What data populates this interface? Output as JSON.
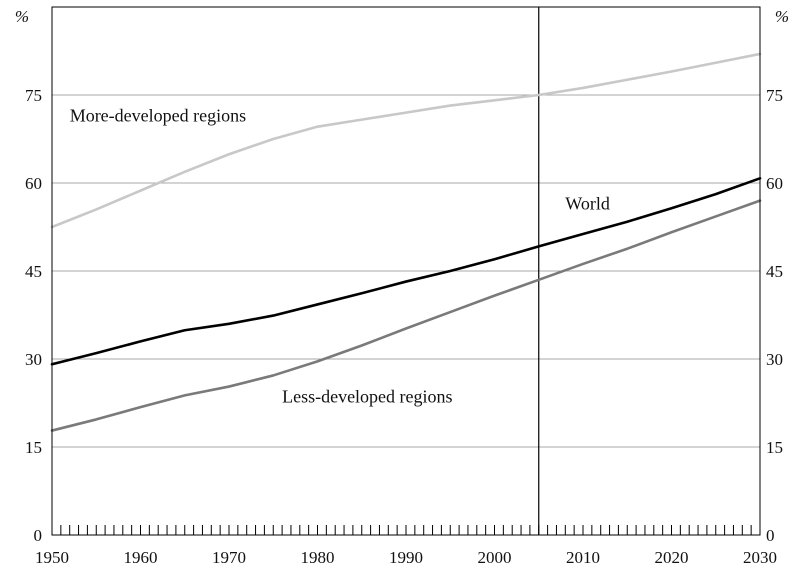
{
  "chart_data": {
    "type": "line",
    "title": "",
    "xlabel": "",
    "ylabel": "",
    "y_unit_left": "%",
    "y_unit_right": "%",
    "xlim": [
      1950,
      2030
    ],
    "ylim": [
      0,
      90
    ],
    "x_ticks": [
      1950,
      1960,
      1970,
      1980,
      1990,
      2000,
      2010,
      2020,
      2030
    ],
    "x_tick_labels": [
      "1950",
      "1960",
      "1970",
      "1980",
      "1990",
      "2000",
      "2010",
      "2020",
      "2030"
    ],
    "y_ticks": [
      0,
      15,
      30,
      45,
      60,
      75
    ],
    "y_tick_labels": [
      "0",
      "15",
      "30",
      "45",
      "60",
      "75"
    ],
    "grid": "horizontal",
    "minor_x_ticks_every": 1,
    "reference_line_x": 2005,
    "series": [
      {
        "name": "More-developed regions",
        "color": "#c8c8c8",
        "x": [
          1950,
          1955,
          1960,
          1965,
          1970,
          1975,
          1980,
          1985,
          1990,
          1995,
          2000,
          2005,
          2010,
          2015,
          2020,
          2025,
          2030
        ],
        "values": [
          52.5,
          55.5,
          58.7,
          61.9,
          64.9,
          67.5,
          69.6,
          70.8,
          72.0,
          73.2,
          74.1,
          75.0,
          76.2,
          77.6,
          79.0,
          80.5,
          82.0
        ]
      },
      {
        "name": "World",
        "color": "#000000",
        "x": [
          1950,
          1955,
          1960,
          1965,
          1970,
          1975,
          1980,
          1985,
          1990,
          1995,
          2000,
          2005,
          2010,
          2015,
          2020,
          2025,
          2030
        ],
        "values": [
          29.1,
          31.0,
          33.0,
          34.9,
          36.0,
          37.4,
          39.3,
          41.2,
          43.2,
          45.0,
          47.0,
          49.2,
          51.3,
          53.4,
          55.7,
          58.1,
          60.8
        ]
      },
      {
        "name": "Less-developed regions",
        "color": "#7a7a7a",
        "x": [
          1950,
          1955,
          1960,
          1965,
          1970,
          1975,
          1980,
          1985,
          1990,
          1995,
          2000,
          2005,
          2010,
          2015,
          2020,
          2025,
          2030
        ],
        "values": [
          17.8,
          19.7,
          21.8,
          23.8,
          25.3,
          27.2,
          29.6,
          32.3,
          35.2,
          38.0,
          40.8,
          43.5,
          46.2,
          48.8,
          51.6,
          54.3,
          57.0
        ]
      }
    ],
    "annotations": [
      {
        "text": "More-developed regions",
        "series": "More-developed regions"
      },
      {
        "text": "World",
        "series": "World"
      },
      {
        "text": "Less-developed regions",
        "series": "Less-developed regions"
      }
    ]
  }
}
